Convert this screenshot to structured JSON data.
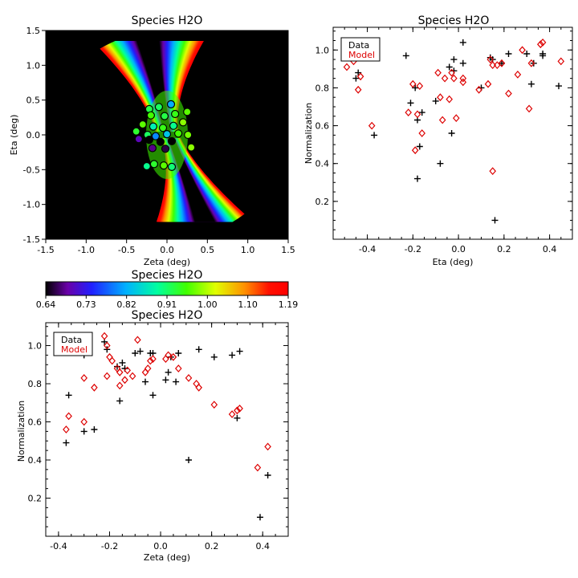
{
  "chart_data": [
    {
      "id": "map",
      "type": "heatmap",
      "title": "Species H2O",
      "xlabel": "Zeta (deg)",
      "ylabel": "Eta (deg)",
      "xlim": [
        -1.5,
        1.5
      ],
      "ylim": [
        -1.5,
        1.5
      ],
      "xticks": [
        "-1.5",
        "-1.0",
        "-0.5",
        "0.0",
        "0.5",
        "1.0",
        "1.5"
      ],
      "yticks": [
        "-1.5",
        "-1.0",
        "-0.5",
        "0.0",
        "0.5",
        "1.0",
        "1.5"
      ],
      "points": [
        {
          "zeta": -0.22,
          "eta": 0.37,
          "v": 0.93
        },
        {
          "zeta": -0.1,
          "eta": 0.4,
          "v": 0.92
        },
        {
          "zeta": 0.05,
          "eta": 0.44,
          "v": 0.82
        },
        {
          "zeta": -0.2,
          "eta": 0.28,
          "v": 0.96
        },
        {
          "zeta": -0.03,
          "eta": 0.27,
          "v": 0.93
        },
        {
          "zeta": 0.1,
          "eta": 0.3,
          "v": 0.95
        },
        {
          "zeta": 0.25,
          "eta": 0.33,
          "v": 0.97
        },
        {
          "zeta": -0.3,
          "eta": 0.15,
          "v": 0.97
        },
        {
          "zeta": -0.17,
          "eta": 0.12,
          "v": 0.88
        },
        {
          "zeta": -0.05,
          "eta": 0.1,
          "v": 0.95
        },
        {
          "zeta": 0.08,
          "eta": 0.13,
          "v": 0.9
        },
        {
          "zeta": 0.2,
          "eta": 0.18,
          "v": 0.99
        },
        {
          "zeta": -0.38,
          "eta": 0.05,
          "v": 0.94
        },
        {
          "zeta": -0.24,
          "eta": 0.0,
          "v": 0.92
        },
        {
          "zeta": -0.14,
          "eta": -0.02,
          "v": 0.8
        },
        {
          "zeta": 0.0,
          "eta": 0.01,
          "v": 0.84
        },
        {
          "zeta": 0.14,
          "eta": 0.02,
          "v": 0.96
        },
        {
          "zeta": 0.26,
          "eta": 0.0,
          "v": 0.98
        },
        {
          "zeta": -0.35,
          "eta": -0.06,
          "v": 0.7
        },
        {
          "zeta": -0.22,
          "eta": -0.07,
          "v": 0.62
        },
        {
          "zeta": -0.08,
          "eta": -0.1,
          "v": 0.6
        },
        {
          "zeta": 0.06,
          "eta": -0.09,
          "v": 0.58
        },
        {
          "zeta": -0.18,
          "eta": -0.19,
          "v": 0.68
        },
        {
          "zeta": -0.02,
          "eta": -0.2,
          "v": 0.66
        },
        {
          "zeta": 0.3,
          "eta": -0.18,
          "v": 0.99
        },
        {
          "zeta": -0.16,
          "eta": -0.42,
          "v": 0.94
        },
        {
          "zeta": -0.04,
          "eta": -0.44,
          "v": 0.97
        },
        {
          "zeta": 0.06,
          "eta": -0.46,
          "v": 0.91
        },
        {
          "zeta": -0.25,
          "eta": -0.45,
          "v": 0.9
        }
      ]
    },
    {
      "id": "colorbar",
      "type": "colorbar",
      "title": "Species H2O",
      "range": [
        0.64,
        1.19
      ],
      "ticks": [
        "0.64",
        "0.73",
        "0.82",
        "0.91",
        "1.00",
        "1.10",
        "1.19"
      ]
    },
    {
      "id": "eta",
      "type": "scatter",
      "title": "Species H2O",
      "xlabel": "Eta (deg)",
      "ylabel": "Normalization",
      "xlim": [
        -0.55,
        0.5
      ],
      "ylim": [
        0.0,
        1.12
      ],
      "xticks": [
        -0.4,
        -0.2,
        0.0,
        0.2,
        0.4
      ],
      "xtick_labels": [
        "-0.4",
        "-0.2",
        "0.0",
        "0.2",
        "0.4"
      ],
      "yticks": [
        0.2,
        0.4,
        0.6,
        0.8,
        1.0
      ],
      "ytick_labels": [
        "0.2",
        "0.4",
        "0.6",
        "0.8",
        "1.0"
      ],
      "legend": {
        "data": "Data",
        "model": "Model",
        "position": "top-left"
      },
      "series": [
        {
          "name": "Data",
          "marker": "plus",
          "color": "#000000",
          "x": [
            -0.48,
            -0.45,
            -0.44,
            -0.42,
            -0.37,
            -0.23,
            -0.21,
            -0.19,
            -0.18,
            -0.18,
            -0.17,
            -0.16,
            -0.1,
            -0.08,
            -0.04,
            -0.03,
            -0.02,
            -0.02,
            0.02,
            0.02,
            0.1,
            0.14,
            0.15,
            0.16,
            0.19,
            0.22,
            0.3,
            0.32,
            0.33,
            0.37,
            0.37,
            0.44
          ],
          "y": [
            0.96,
            0.85,
            0.88,
            0.96,
            0.55,
            0.97,
            0.72,
            0.8,
            0.63,
            0.32,
            0.49,
            0.67,
            0.73,
            0.4,
            0.91,
            0.56,
            0.95,
            0.89,
            1.04,
            0.93,
            0.8,
            0.96,
            0.95,
            0.1,
            0.93,
            0.98,
            0.98,
            0.82,
            0.93,
            0.97,
            0.98,
            0.81
          ],
          "color_name": "black"
        },
        {
          "name": "Model",
          "marker": "diamond",
          "color": "#dd0000",
          "x": [
            -0.49,
            -0.46,
            -0.44,
            -0.43,
            -0.38,
            -0.22,
            -0.2,
            -0.19,
            -0.18,
            -0.17,
            -0.16,
            -0.09,
            -0.08,
            -0.07,
            -0.06,
            -0.04,
            -0.03,
            -0.02,
            -0.01,
            0.02,
            0.02,
            0.09,
            0.13,
            0.14,
            0.15,
            0.15,
            0.17,
            0.19,
            0.22,
            0.26,
            0.28,
            0.31,
            0.32,
            0.36,
            0.37,
            0.45
          ],
          "y": [
            0.91,
            0.94,
            0.79,
            0.86,
            0.6,
            0.67,
            0.82,
            0.47,
            0.66,
            0.81,
            0.56,
            0.88,
            0.75,
            0.63,
            0.85,
            0.74,
            0.88,
            0.85,
            0.64,
            0.83,
            0.85,
            0.79,
            0.82,
            0.95,
            0.92,
            0.36,
            0.92,
            0.93,
            0.77,
            0.87,
            1.0,
            0.69,
            0.93,
            1.03,
            1.04,
            0.94
          ]
        }
      ]
    },
    {
      "id": "zeta",
      "type": "scatter",
      "title": "Species H2O",
      "xlabel": "Zeta (deg)",
      "ylabel": "Normalization",
      "xlim": [
        -0.45,
        0.5
      ],
      "ylim": [
        0.0,
        1.12
      ],
      "xticks": [
        -0.4,
        -0.2,
        0.0,
        0.2,
        0.4
      ],
      "xtick_labels": [
        "-0.4",
        "-0.2",
        "0.0",
        "0.2",
        "0.4"
      ],
      "yticks": [
        0.2,
        0.4,
        0.6,
        0.8,
        1.0
      ],
      "ytick_labels": [
        "0.2",
        "0.4",
        "0.6",
        "0.8",
        "1.0"
      ],
      "legend": {
        "data": "Data",
        "model": "Model",
        "position": "top-left"
      },
      "series": [
        {
          "name": "Data",
          "marker": "plus",
          "color": "#000000",
          "x": [
            -0.37,
            -0.36,
            -0.3,
            -0.3,
            -0.26,
            -0.22,
            -0.21,
            -0.17,
            -0.16,
            -0.15,
            -0.14,
            -0.1,
            -0.08,
            -0.06,
            -0.04,
            -0.03,
            -0.03,
            0.02,
            0.03,
            0.04,
            0.06,
            0.07,
            0.11,
            0.15,
            0.21,
            0.28,
            0.3,
            0.31,
            0.39,
            0.42
          ],
          "y": [
            0.49,
            0.74,
            0.95,
            0.55,
            0.56,
            1.02,
            0.98,
            0.89,
            0.71,
            0.91,
            0.88,
            0.96,
            0.97,
            0.81,
            0.96,
            0.96,
            0.74,
            0.82,
            0.86,
            0.94,
            0.81,
            0.96,
            0.4,
            0.98,
            0.94,
            0.95,
            0.62,
            0.97,
            0.1,
            0.32
          ],
          "color_name": "black"
        },
        {
          "name": "Model",
          "marker": "diamond",
          "color": "#dd0000",
          "x": [
            -0.37,
            -0.36,
            -0.3,
            -0.3,
            -0.26,
            -0.22,
            -0.21,
            -0.21,
            -0.2,
            -0.19,
            -0.17,
            -0.16,
            -0.16,
            -0.14,
            -0.13,
            -0.11,
            -0.09,
            -0.06,
            -0.05,
            -0.04,
            -0.03,
            0.02,
            0.03,
            0.05,
            0.07,
            0.11,
            0.14,
            0.15,
            0.21,
            0.28,
            0.3,
            0.31,
            0.38,
            0.42
          ],
          "y": [
            0.56,
            0.63,
            0.83,
            0.6,
            0.78,
            1.05,
            1.0,
            0.84,
            0.94,
            0.92,
            0.88,
            0.79,
            0.86,
            0.82,
            0.87,
            0.84,
            1.03,
            0.86,
            0.88,
            0.92,
            0.93,
            0.93,
            0.95,
            0.94,
            0.88,
            0.83,
            0.8,
            0.78,
            0.69,
            0.64,
            0.66,
            0.67,
            0.36,
            0.47
          ]
        }
      ]
    }
  ]
}
